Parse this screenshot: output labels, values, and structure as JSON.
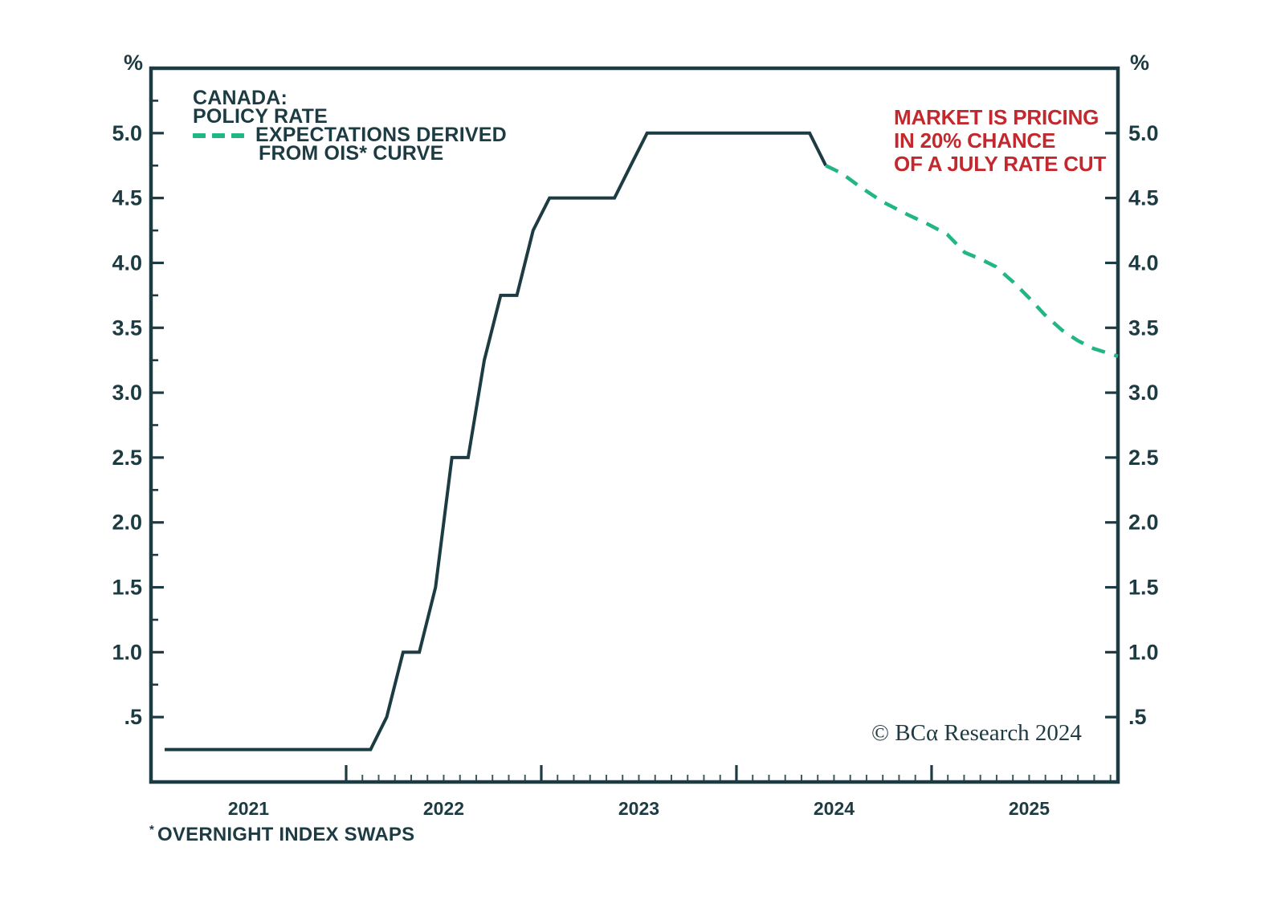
{
  "colors": {
    "text_dark": "#1d3b42",
    "policy_line": "#1d3b42",
    "ois_line": "#22b585",
    "annotation_red": "#c2282d",
    "background": "#ffffff"
  },
  "chart_data": {
    "type": "line",
    "title": "CANADA: POLICY RATE",
    "legend": {
      "title_line1": "CANADA:",
      "title_line2": "POLICY RATE",
      "expectations_line1": "EXPECTATIONS DERIVED",
      "expectations_line2": "FROM OIS* CURVE"
    },
    "x_axis": {
      "range": [
        2021.0,
        2025.955
      ],
      "major_ticks": [
        2022,
        2023,
        2024,
        2025
      ],
      "minor_ticks": "monthly from 2022",
      "labels": [
        {
          "t": 2021.5,
          "label": "2021"
        },
        {
          "t": 2022.5,
          "label": "2022"
        },
        {
          "t": 2023.5,
          "label": "2023"
        },
        {
          "t": 2024.5,
          "label": "2024"
        },
        {
          "t": 2025.5,
          "label": "2025"
        }
      ]
    },
    "y_axis": {
      "unit": "%",
      "range": [
        0,
        5.5
      ],
      "major_ticks": [
        0.5,
        1.0,
        1.5,
        2.0,
        2.5,
        3.0,
        3.5,
        4.0,
        4.5,
        5.0
      ],
      "minor_ticks": [
        0.75,
        1.25,
        1.75,
        2.25,
        2.75,
        3.25,
        3.75,
        4.25,
        4.75,
        5.25
      ],
      "tick_labels": [
        {
          "v": 5.0,
          "label": "5.0"
        },
        {
          "v": 4.5,
          "label": "4.5"
        },
        {
          "v": 4.0,
          "label": "4.0"
        },
        {
          "v": 3.5,
          "label": "3.5"
        },
        {
          "v": 3.0,
          "label": "3.0"
        },
        {
          "v": 2.5,
          "label": "2.5"
        },
        {
          "v": 2.0,
          "label": "2.0"
        },
        {
          "v": 1.5,
          "label": "1.5"
        },
        {
          "v": 1.0,
          "label": "1.0"
        },
        {
          "v": 0.5,
          "label": ".5"
        }
      ]
    },
    "series": [
      {
        "name": "CANADA: POLICY RATE",
        "style": "solid",
        "color": "#1d3b42",
        "stroke_width": 4,
        "points": [
          [
            2021.07,
            0.25
          ],
          [
            2022.125,
            0.25
          ],
          [
            2022.208,
            0.5
          ],
          [
            2022.292,
            1.0
          ],
          [
            2022.375,
            1.0
          ],
          [
            2022.458,
            1.5
          ],
          [
            2022.542,
            2.5
          ],
          [
            2022.625,
            2.5
          ],
          [
            2022.708,
            3.25
          ],
          [
            2022.792,
            3.75
          ],
          [
            2022.875,
            3.75
          ],
          [
            2022.958,
            4.25
          ],
          [
            2023.042,
            4.5
          ],
          [
            2023.375,
            4.5
          ],
          [
            2023.458,
            4.75
          ],
          [
            2023.542,
            5.0
          ],
          [
            2024.375,
            5.0
          ],
          [
            2024.458,
            4.75
          ]
        ]
      },
      {
        "name": "EXPECTATIONS DERIVED FROM OIS* CURVE",
        "style": "dashed",
        "color": "#22b585",
        "stroke_width": 4.5,
        "points": [
          [
            2024.458,
            4.75
          ],
          [
            2024.54,
            4.69
          ],
          [
            2024.63,
            4.59
          ],
          [
            2024.75,
            4.47
          ],
          [
            2024.88,
            4.37
          ],
          [
            2024.98,
            4.3
          ],
          [
            2025.08,
            4.22
          ],
          [
            2025.17,
            4.08
          ],
          [
            2025.25,
            4.03
          ],
          [
            2025.33,
            3.97
          ],
          [
            2025.42,
            3.85
          ],
          [
            2025.5,
            3.73
          ],
          [
            2025.58,
            3.6
          ],
          [
            2025.67,
            3.48
          ],
          [
            2025.75,
            3.4
          ],
          [
            2025.83,
            3.34
          ],
          [
            2025.955,
            3.28
          ]
        ]
      }
    ]
  },
  "annotation": {
    "line1": "MARKET IS PRICING",
    "line2": "IN 20% CHANCE",
    "line3": "OF A JULY RATE CUT"
  },
  "copyright": "© BCα Research 2024",
  "footnote": {
    "marker": "*",
    "text": "OVERNIGHT INDEX SWAPS"
  }
}
